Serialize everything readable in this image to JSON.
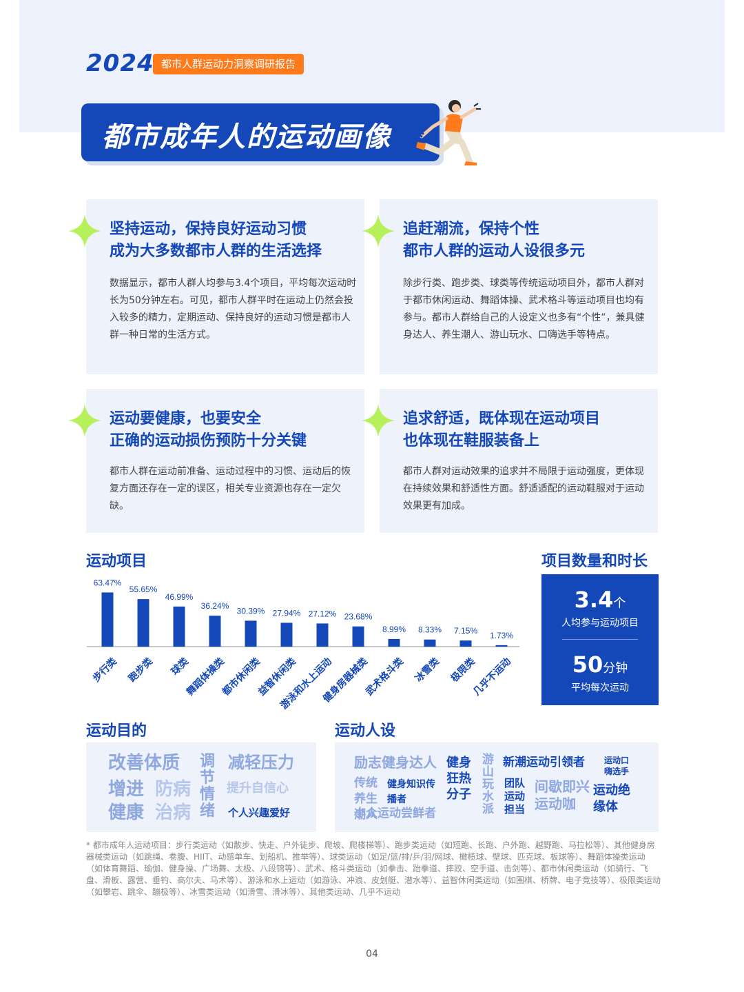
{
  "header": {
    "year": "2024",
    "report_tag": "都市人群运动力洞察调研报告",
    "title": "都市成年人的运动画像"
  },
  "cards": [
    {
      "head": [
        "坚持运动，保持良好运动习惯",
        "成为大多数都市人群的生活选择"
      ],
      "body": "数据显示，都市人群人均参与3.4个项目，平均每次运动时长为50分钟左右。可见，都市人群平时在运动上仍然会投入较多的精力，定期运动、保持良好的运动习惯是都市人群一种日常的生活方式。"
    },
    {
      "head": [
        "追赶潮流，保持个性",
        "都市人群的运动人设很多元"
      ],
      "body": "除步行类、跑步类、球类等传统运动项目外，都市人群对于都市休闲运动、舞蹈体操、武术格斗等运动项目也均有参与。都市人群给自己的人设定义也多有“个性”，兼具健身达人、养生潮人、游山玩水、口嗨选手等特点。"
    },
    {
      "head": [
        "运动要健康，也要安全",
        "正确的运动损伤预防十分关键"
      ],
      "body": "都市人群在运动前准备、运动过程中的习惯、运动后的恢复方面还存在一定的误区，相关专业资源也存在一定欠缺。"
    },
    {
      "head": [
        "追求舒适，既体现在运动项目",
        "也体现在鞋服装备上"
      ],
      "body": "都市人群对运动效果的追求并不局限于运动强度，更体现在持续效果和舒适性方面。舒适适配的运动鞋服对于运动效果更有加成。"
    }
  ],
  "sections": {
    "sports": "运动项目",
    "stats": "项目数量和时长",
    "purpose": "运动目的",
    "persona": "运动人设"
  },
  "chart_data": {
    "type": "bar",
    "title": "运动项目",
    "categories": [
      "步行类",
      "跑步类",
      "球类",
      "舞蹈体操类",
      "都市休闲类",
      "益智休闲类",
      "游泳和水上运动",
      "健身房器械类",
      "武术格斗类",
      "冰雪类",
      "极限类",
      "几乎不运动"
    ],
    "values": [
      63.47,
      55.65,
      46.99,
      36.24,
      30.39,
      27.94,
      27.12,
      23.68,
      8.99,
      8.33,
      7.15,
      1.73
    ],
    "value_labels": [
      "63.47%",
      "55.65%",
      "46.99%",
      "36.24%",
      "30.39%",
      "27.94%",
      "27.12%",
      "23.68%",
      "8.99%",
      "8.33%",
      "7.15%",
      "1.73%"
    ],
    "ylim": [
      0,
      70
    ],
    "unit": "%",
    "grid": false,
    "color": "#1447b8"
  },
  "stats": {
    "projects_value": "3.4",
    "projects_unit": "个",
    "projects_label": "人均参与运动项目",
    "duration_value": "50",
    "duration_unit": "分钟",
    "duration_label": "平均每次运动"
  },
  "purpose_words": [
    "改善体质",
    "调节情绪",
    "减轻压力",
    "增进",
    "防病",
    "提升自信心",
    "健康",
    "治病",
    "个人兴趣爱好"
  ],
  "persona_words": [
    "励志健身达人",
    "健身狂热分子",
    "游山玩水派",
    "新潮运动引领者",
    "运动口嗨选手",
    "传统养生潮人",
    "健身知识传播者",
    "团队运动担当",
    "间歇即兴运动咖",
    "运动绝缘体",
    "小众运动尝鲜者"
  ],
  "footnote": "* 都市成年人运动项目：步行类运动（如散步、快走、户外徒步、爬坡、爬楼梯等）、跑步类运动（如短跑、长跑、户外跑、越野跑、马拉松等）、其他健身房器械类运动（如跳绳、卷腹、HIIT、动感单车、划船机、推举等）、球类运动（如足/篮/排/乒/羽/网球、橄榄球、壁球、匹克球、板球等）、舞蹈体操类运动（如体育舞蹈、瑜伽、健身操、广场舞、太极、八段锦等）、武术、格斗类运动（如拳击、跆拳道、摔跤、空手道、击剑等）、都市休闲类运动（如骑行、飞盘、滑板、露营、垂钓、高尔夫、马术等）、游泳和水上运动（如游泳、冲浪、皮划艇、潜水等）、益智休闲类运动（如围棋、桥牌、电子竞技等）、极限类运动（如攀岩、跳伞、蹦极等）、冰雪类运动（如滑雪、滑冰等）、其他类运动、几乎不运动",
  "page_number": "04",
  "colors": {
    "primary": "#1447b8",
    "accent_orange": "#ff7a1a",
    "star_green": "#b6f05a",
    "card_bg": "#eef2fa",
    "light_word": "#8fa8e0"
  }
}
